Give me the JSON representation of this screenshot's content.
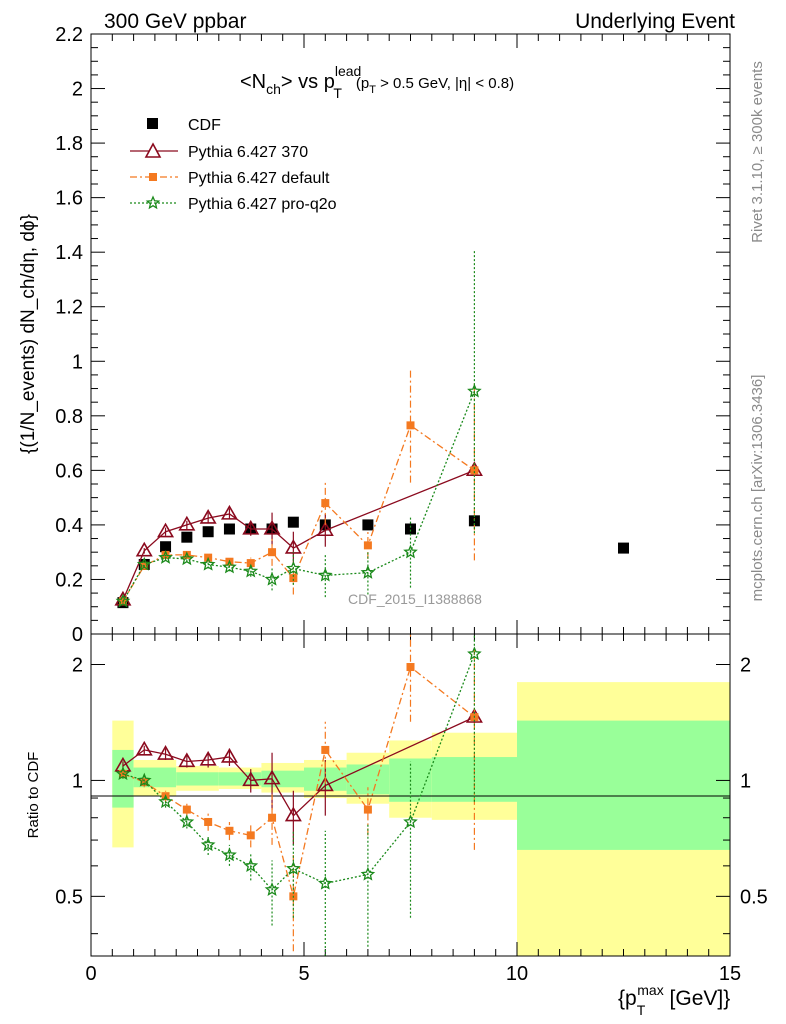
{
  "header": {
    "left": "300 GeV ppbar",
    "right": "Underlying Event"
  },
  "side": {
    "rivet": "Rivet 3.1.10, ≥ 300k events",
    "mcplots": "mcplots.cern.ch [arXiv:1306.3436]"
  },
  "chart_data": [
    {
      "type": "scatter",
      "title_main": "<N",
      "title_sub1": "ch",
      "title_mid": "> vs p",
      "title_sup": "lead",
      "title_sub2": "T",
      "title_cut_a": "(p",
      "title_cut_sub": "T",
      "title_cut_b": " > 0.5 GeV, |η| < 0.8)",
      "ylabel": "{(1/N_events) dN_ch/dη, dϕ}",
      "ylim": [
        0,
        2.2
      ],
      "xlim": [
        0,
        15
      ],
      "yticks": [
        "0",
        "0.2",
        "0.4",
        "0.6",
        "0.8",
        "1",
        "1.2",
        "1.4",
        "1.6",
        "1.8",
        "2",
        "2.2"
      ],
      "watermark": "CDF_2015_I1388868",
      "legend_position": "top-left",
      "series": [
        {
          "name": "CDF",
          "color": "#000000",
          "marker": "square",
          "x": [
            0.75,
            1.25,
            1.75,
            2.25,
            2.75,
            3.25,
            3.75,
            4.25,
            4.75,
            5.5,
            6.5,
            7.5,
            9.0,
            12.5
          ],
          "y": [
            0.115,
            0.255,
            0.32,
            0.355,
            0.375,
            0.385,
            0.385,
            0.385,
            0.41,
            0.4,
            0.4,
            0.385,
            0.415,
            0.315
          ]
        },
        {
          "name": "Pythia 6.427 370",
          "color": "#8b0a1e",
          "marker": "triangle",
          "x": [
            0.75,
            1.25,
            1.75,
            2.25,
            2.75,
            3.25,
            3.75,
            4.25,
            4.75,
            5.5,
            9.0
          ],
          "y": [
            0.125,
            0.305,
            0.375,
            0.4,
            0.425,
            0.44,
            0.385,
            0.385,
            0.315,
            0.38,
            0.6
          ],
          "err": [
            0.005,
            0.01,
            0.015,
            0.015,
            0.02,
            0.02,
            0.025,
            0.06,
            0.06,
            0.06,
            0.02
          ]
        },
        {
          "name": "Pythia 6.427 default",
          "color": "#f47920",
          "marker": "square",
          "x": [
            0.75,
            1.25,
            1.75,
            2.25,
            2.75,
            3.25,
            3.75,
            4.25,
            4.75,
            5.5,
            6.5,
            7.5,
            9.0
          ],
          "y": [
            0.12,
            0.25,
            0.29,
            0.29,
            0.28,
            0.265,
            0.26,
            0.3,
            0.205,
            0.48,
            0.325,
            0.765,
            0.6
          ],
          "err": [
            0.005,
            0.01,
            0.01,
            0.01,
            0.015,
            0.015,
            0.02,
            0.05,
            0.06,
            0.08,
            0.05,
            0.21,
            0.33
          ]
        },
        {
          "name": "Pythia 6.427 pro-q2o",
          "color": "#1b8a1b",
          "marker": "star",
          "x": [
            0.75,
            1.25,
            1.75,
            2.25,
            2.75,
            3.25,
            3.75,
            4.25,
            4.75,
            5.5,
            6.5,
            7.5,
            9.0
          ],
          "y": [
            0.12,
            0.255,
            0.28,
            0.275,
            0.255,
            0.245,
            0.23,
            0.2,
            0.24,
            0.215,
            0.225,
            0.3,
            0.89
          ],
          "err": [
            0.005,
            0.01,
            0.01,
            0.01,
            0.015,
            0.015,
            0.02,
            0.04,
            0.06,
            0.08,
            0.08,
            0.13,
            0.52
          ]
        }
      ]
    },
    {
      "type": "scatter",
      "ylabel": "Ratio to CDF",
      "xlabel": "{p_T^max [GeV]}",
      "ylog": true,
      "ylim": [
        0.35,
        2.4
      ],
      "xlim": [
        0,
        15
      ],
      "xticks": [
        "0",
        "5",
        "10",
        "15"
      ],
      "yticks": [
        "0.5",
        "1",
        "2"
      ],
      "bands": [
        {
          "x0": 0.5,
          "x1": 1.0,
          "inner": [
            0.85,
            1.2
          ],
          "outer": [
            0.67,
            1.43
          ]
        },
        {
          "x0": 1.0,
          "x1": 2.0,
          "inner": [
            0.96,
            1.08
          ],
          "outer": [
            0.91,
            1.13
          ]
        },
        {
          "x0": 2.0,
          "x1": 3.0,
          "inner": [
            0.97,
            1.05
          ],
          "outer": [
            0.94,
            1.09
          ]
        },
        {
          "x0": 3.0,
          "x1": 4.0,
          "inner": [
            0.97,
            1.05
          ],
          "outer": [
            0.95,
            1.08
          ]
        },
        {
          "x0": 4.0,
          "x1": 5.0,
          "inner": [
            0.96,
            1.06
          ],
          "outer": [
            0.93,
            1.11
          ]
        },
        {
          "x0": 5.0,
          "x1": 6.0,
          "inner": [
            0.94,
            1.08
          ],
          "outer": [
            0.9,
            1.13
          ]
        },
        {
          "x0": 6.0,
          "x1": 7.0,
          "inner": [
            0.92,
            1.1
          ],
          "outer": [
            0.87,
            1.18
          ]
        },
        {
          "x0": 7.0,
          "x1": 8.0,
          "inner": [
            0.88,
            1.14
          ],
          "outer": [
            0.8,
            1.27
          ]
        },
        {
          "x0": 8.0,
          "x1": 10.0,
          "inner": [
            0.88,
            1.15
          ],
          "outer": [
            0.79,
            1.33
          ]
        },
        {
          "x0": 10.0,
          "x1": 15.0,
          "inner": [
            0.66,
            1.43
          ],
          "outer": [
            0.35,
            1.8
          ]
        }
      ],
      "series": [
        {
          "name": "Pythia 6.427 370",
          "color": "#8b0a1e",
          "x": [
            0.75,
            1.25,
            1.75,
            2.25,
            2.75,
            3.25,
            3.75,
            4.25,
            4.75,
            5.5,
            9.0
          ],
          "y": [
            1.09,
            1.2,
            1.17,
            1.12,
            1.13,
            1.15,
            1.0,
            1.01,
            0.81,
            0.97,
            1.46
          ],
          "err": [
            0.03,
            0.03,
            0.04,
            0.04,
            0.05,
            0.06,
            0.07,
            0.17,
            0.13,
            0.16,
            0.05
          ]
        },
        {
          "name": "Pythia 6.427 default",
          "color": "#f47920",
          "x": [
            0.75,
            1.25,
            1.75,
            2.25,
            2.75,
            3.25,
            3.75,
            4.25,
            4.75,
            5.5,
            6.5,
            7.5,
            9.0
          ],
          "y": [
            1.04,
            0.99,
            0.91,
            0.84,
            0.78,
            0.74,
            0.72,
            0.8,
            0.5,
            1.2,
            0.84,
            1.97,
            1.46
          ],
          "err": [
            0.03,
            0.03,
            0.03,
            0.03,
            0.04,
            0.04,
            0.05,
            0.12,
            0.14,
            0.22,
            0.12,
            0.55,
            0.8
          ]
        },
        {
          "name": "Pythia 6.427 pro-q2o",
          "color": "#1b8a1b",
          "x": [
            0.75,
            1.25,
            1.75,
            2.25,
            2.75,
            3.25,
            3.75,
            4.25,
            4.75,
            5.5,
            6.5,
            7.5,
            9.0
          ],
          "y": [
            1.04,
            1.0,
            0.88,
            0.78,
            0.68,
            0.64,
            0.6,
            0.52,
            0.59,
            0.54,
            0.57,
            0.78,
            2.13
          ],
          "err": [
            0.03,
            0.03,
            0.03,
            0.03,
            0.04,
            0.04,
            0.05,
            0.1,
            0.15,
            0.2,
            0.2,
            0.34,
            1.25
          ]
        }
      ]
    }
  ]
}
